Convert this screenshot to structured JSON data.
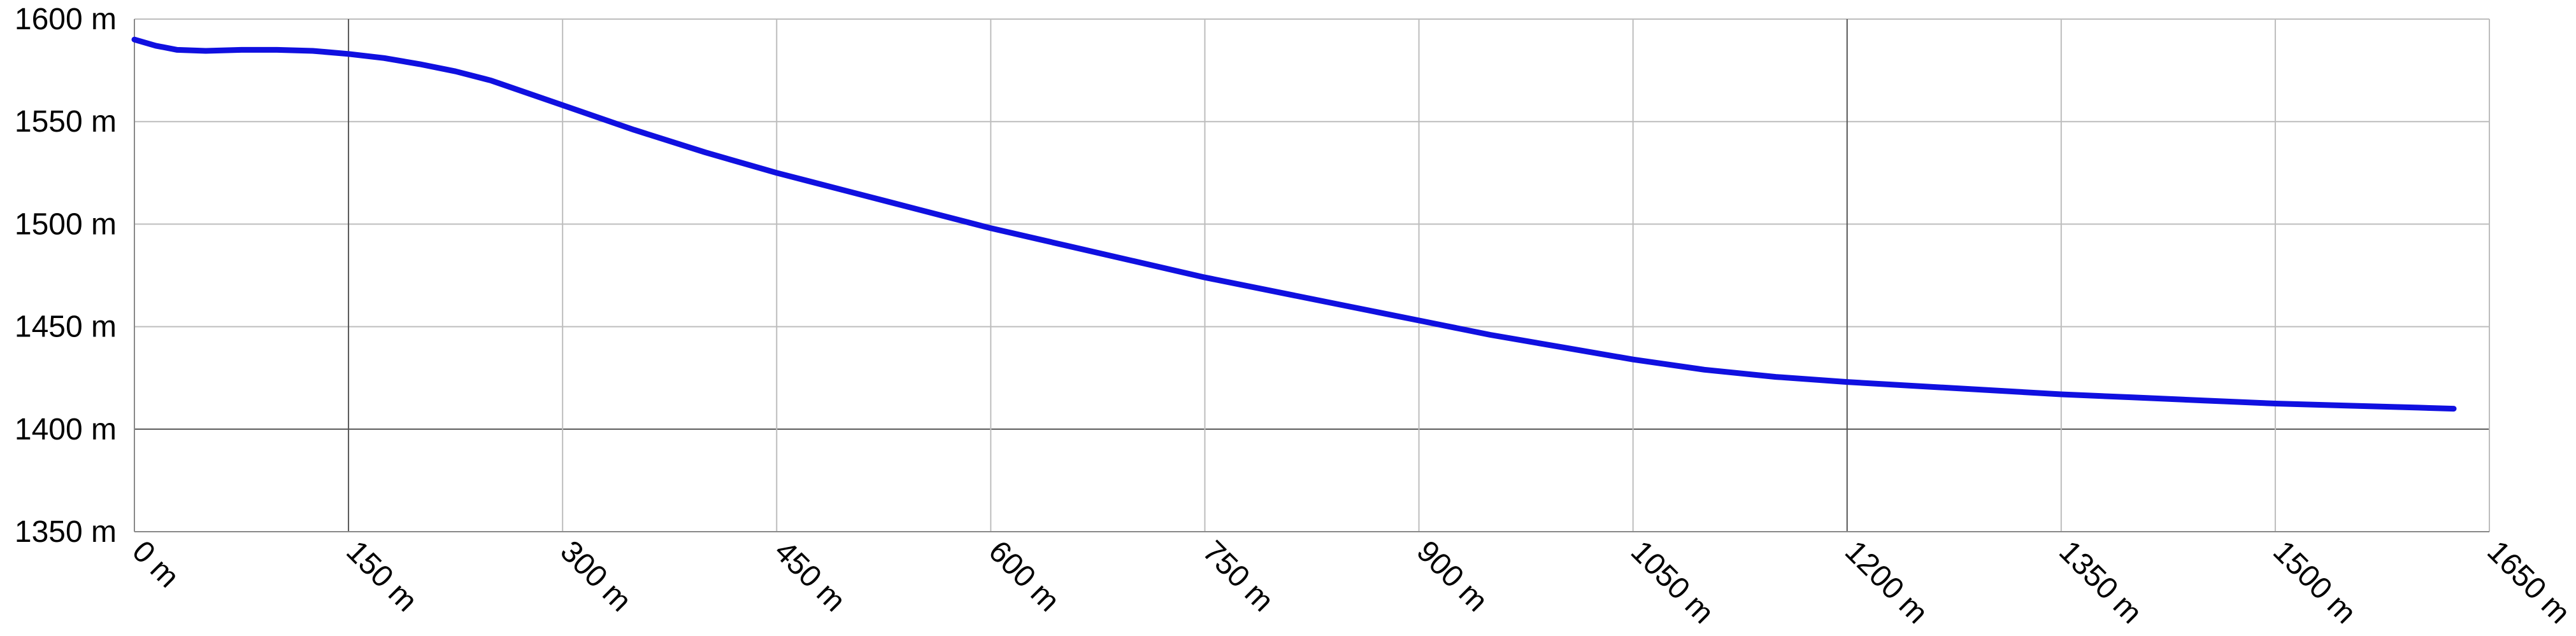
{
  "chart_data": {
    "type": "line",
    "title": "",
    "xlabel": "",
    "ylabel": "",
    "xlim": [
      0,
      1650
    ],
    "ylim": [
      1350,
      1600
    ],
    "grid": true,
    "x_ticks": [
      0,
      150,
      300,
      450,
      600,
      750,
      900,
      1050,
      1200,
      1350,
      1500,
      1650
    ],
    "x_tick_labels": [
      "0 m",
      "150 m",
      "300 m",
      "450 m",
      "600 m",
      "750 m",
      "900 m",
      "1050 m",
      "1200 m",
      "1350 m",
      "1500 m",
      "1650 m"
    ],
    "y_ticks": [
      1350,
      1400,
      1450,
      1500,
      1550,
      1600
    ],
    "y_tick_labels": [
      "1350 m",
      "1400 m",
      "1450 m",
      "1500 m",
      "1550 m",
      "1600 m"
    ],
    "dark_x_gridlines": [
      150,
      1200
    ],
    "dark_y_gridlines": [
      1400
    ],
    "colors": {
      "line": "#1010e0",
      "grid": "#bdbdbd",
      "grid_dark": "#555555",
      "axis": "#888888"
    },
    "series": [
      {
        "x": [
          0,
          15,
          30,
          50,
          75,
          100,
          125,
          150,
          175,
          200,
          225,
          250,
          300,
          350,
          400,
          450,
          500,
          550,
          600,
          650,
          700,
          750,
          800,
          850,
          900,
          950,
          1000,
          1050,
          1100,
          1150,
          1200,
          1250,
          1300,
          1350,
          1400,
          1450,
          1500,
          1550,
          1600,
          1625
        ],
        "y": [
          1590,
          1587,
          1585,
          1584.5,
          1585,
          1585,
          1584.5,
          1583,
          1581,
          1578,
          1574.5,
          1570,
          1558,
          1546,
          1535,
          1525,
          1516,
          1507,
          1498,
          1490,
          1482,
          1474,
          1467,
          1460,
          1453,
          1446,
          1440,
          1434,
          1429,
          1425.5,
          1423,
          1421,
          1419,
          1417,
          1415.5,
          1414,
          1412.5,
          1411.5,
          1410.5,
          1410
        ]
      }
    ]
  }
}
